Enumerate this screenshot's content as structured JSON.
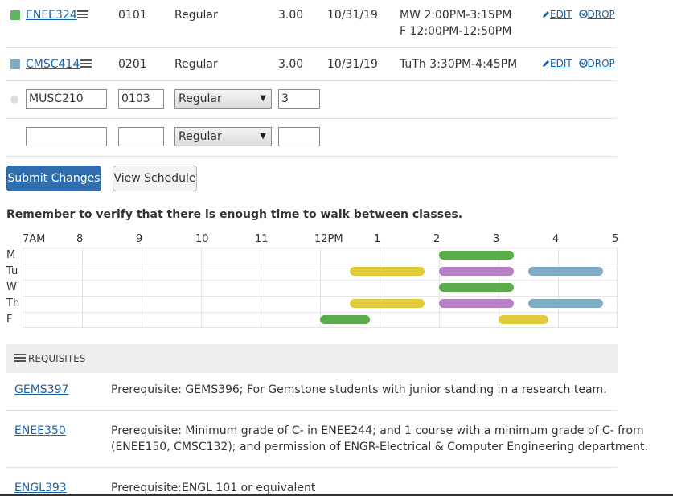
{
  "courses": [
    {
      "code": "ENEE324",
      "section": "0101",
      "grading": "Regular",
      "credits": "3.00",
      "date": "10/31/19",
      "schedule_line1": "MW 2:00PM-3:15PM",
      "schedule_line2": "F 12:00PM-12:50PM",
      "color": "#5cb85c",
      "edit_label": "EDIT",
      "drop_label": "DROP"
    },
    {
      "code": "CMSC414",
      "section": "0201",
      "grading": "Regular",
      "credits": "3.00",
      "date": "10/31/19",
      "schedule_line1": "TuTh 3:30PM-4:45PM",
      "schedule_line2": "",
      "color": "#7eaac4",
      "edit_label": "EDIT",
      "drop_label": "DROP"
    }
  ],
  "add_rows": [
    {
      "course_value": "MUSC210",
      "section_value": "0103",
      "grading_selected": "Regular",
      "credits_value": "3"
    },
    {
      "course_value": "",
      "section_value": "",
      "grading_selected": "Regular",
      "credits_value": ""
    }
  ],
  "buttons": {
    "submit_label": "Submit Changes",
    "view_label": "View Schedule"
  },
  "schedule": {
    "warning": "Remember to verify that there is enough time to walk between classes.",
    "hour_labels": [
      "7AM",
      "8",
      "9",
      "10",
      "11",
      "12PM",
      "1",
      "2",
      "3",
      "4",
      "5"
    ],
    "day_labels": [
      "M",
      "Tu",
      "W",
      "Th",
      "F"
    ],
    "blocks": [
      {
        "day": "M",
        "start": "2:00PM",
        "end": "3:15PM",
        "color": "#5aab4a"
      },
      {
        "day": "Tu",
        "start": "12:30PM",
        "end": "1:45PM",
        "color": "#e2cb3a"
      },
      {
        "day": "Tu",
        "start": "2:00PM",
        "end": "3:15PM",
        "color": "#b57fc6"
      },
      {
        "day": "Tu",
        "start": "3:30PM",
        "end": "4:45PM",
        "color": "#7eaac4"
      },
      {
        "day": "W",
        "start": "2:00PM",
        "end": "3:15PM",
        "color": "#5aab4a"
      },
      {
        "day": "Th",
        "start": "12:30PM",
        "end": "1:45PM",
        "color": "#e2cb3a"
      },
      {
        "day": "Th",
        "start": "2:00PM",
        "end": "3:15PM",
        "color": "#b57fc6"
      },
      {
        "day": "Th",
        "start": "3:30PM",
        "end": "4:45PM",
        "color": "#7eaac4"
      },
      {
        "day": "F",
        "start": "12:00PM",
        "end": "12:50PM",
        "color": "#5aab4a"
      },
      {
        "day": "F",
        "start": "3:00PM",
        "end": "3:50PM",
        "color": "#e2cb3a"
      }
    ]
  },
  "requisites": {
    "header": "REQUISITES",
    "items": [
      {
        "code": "GEMS397",
        "line1": "Prerequisite: GEMS396; For Gemstone students with junior standing in a research team.",
        "line2": ""
      },
      {
        "code": "ENEE350",
        "line1": "Prerequisite: Minimum grade of C- in ENEE244; and 1 course with a minimum grade of C- from",
        "line2": "(ENEE150, CMSC132); and permission of ENGR-Electrical & Computer Engineering department."
      },
      {
        "code": "ENGL393",
        "line1": "Prerequisite:ENGL 101 or equivalent",
        "line2": ""
      }
    ]
  },
  "colors": {
    "link": "#1a62a8",
    "primary": "#2f6fb0",
    "grid_line": "#e3e3e3",
    "panel": "#eeeeee"
  },
  "icons": [
    "list-icon",
    "pencil-icon",
    "circle-arrow-icon",
    "list-bullets-icon",
    "dot-icon"
  ]
}
